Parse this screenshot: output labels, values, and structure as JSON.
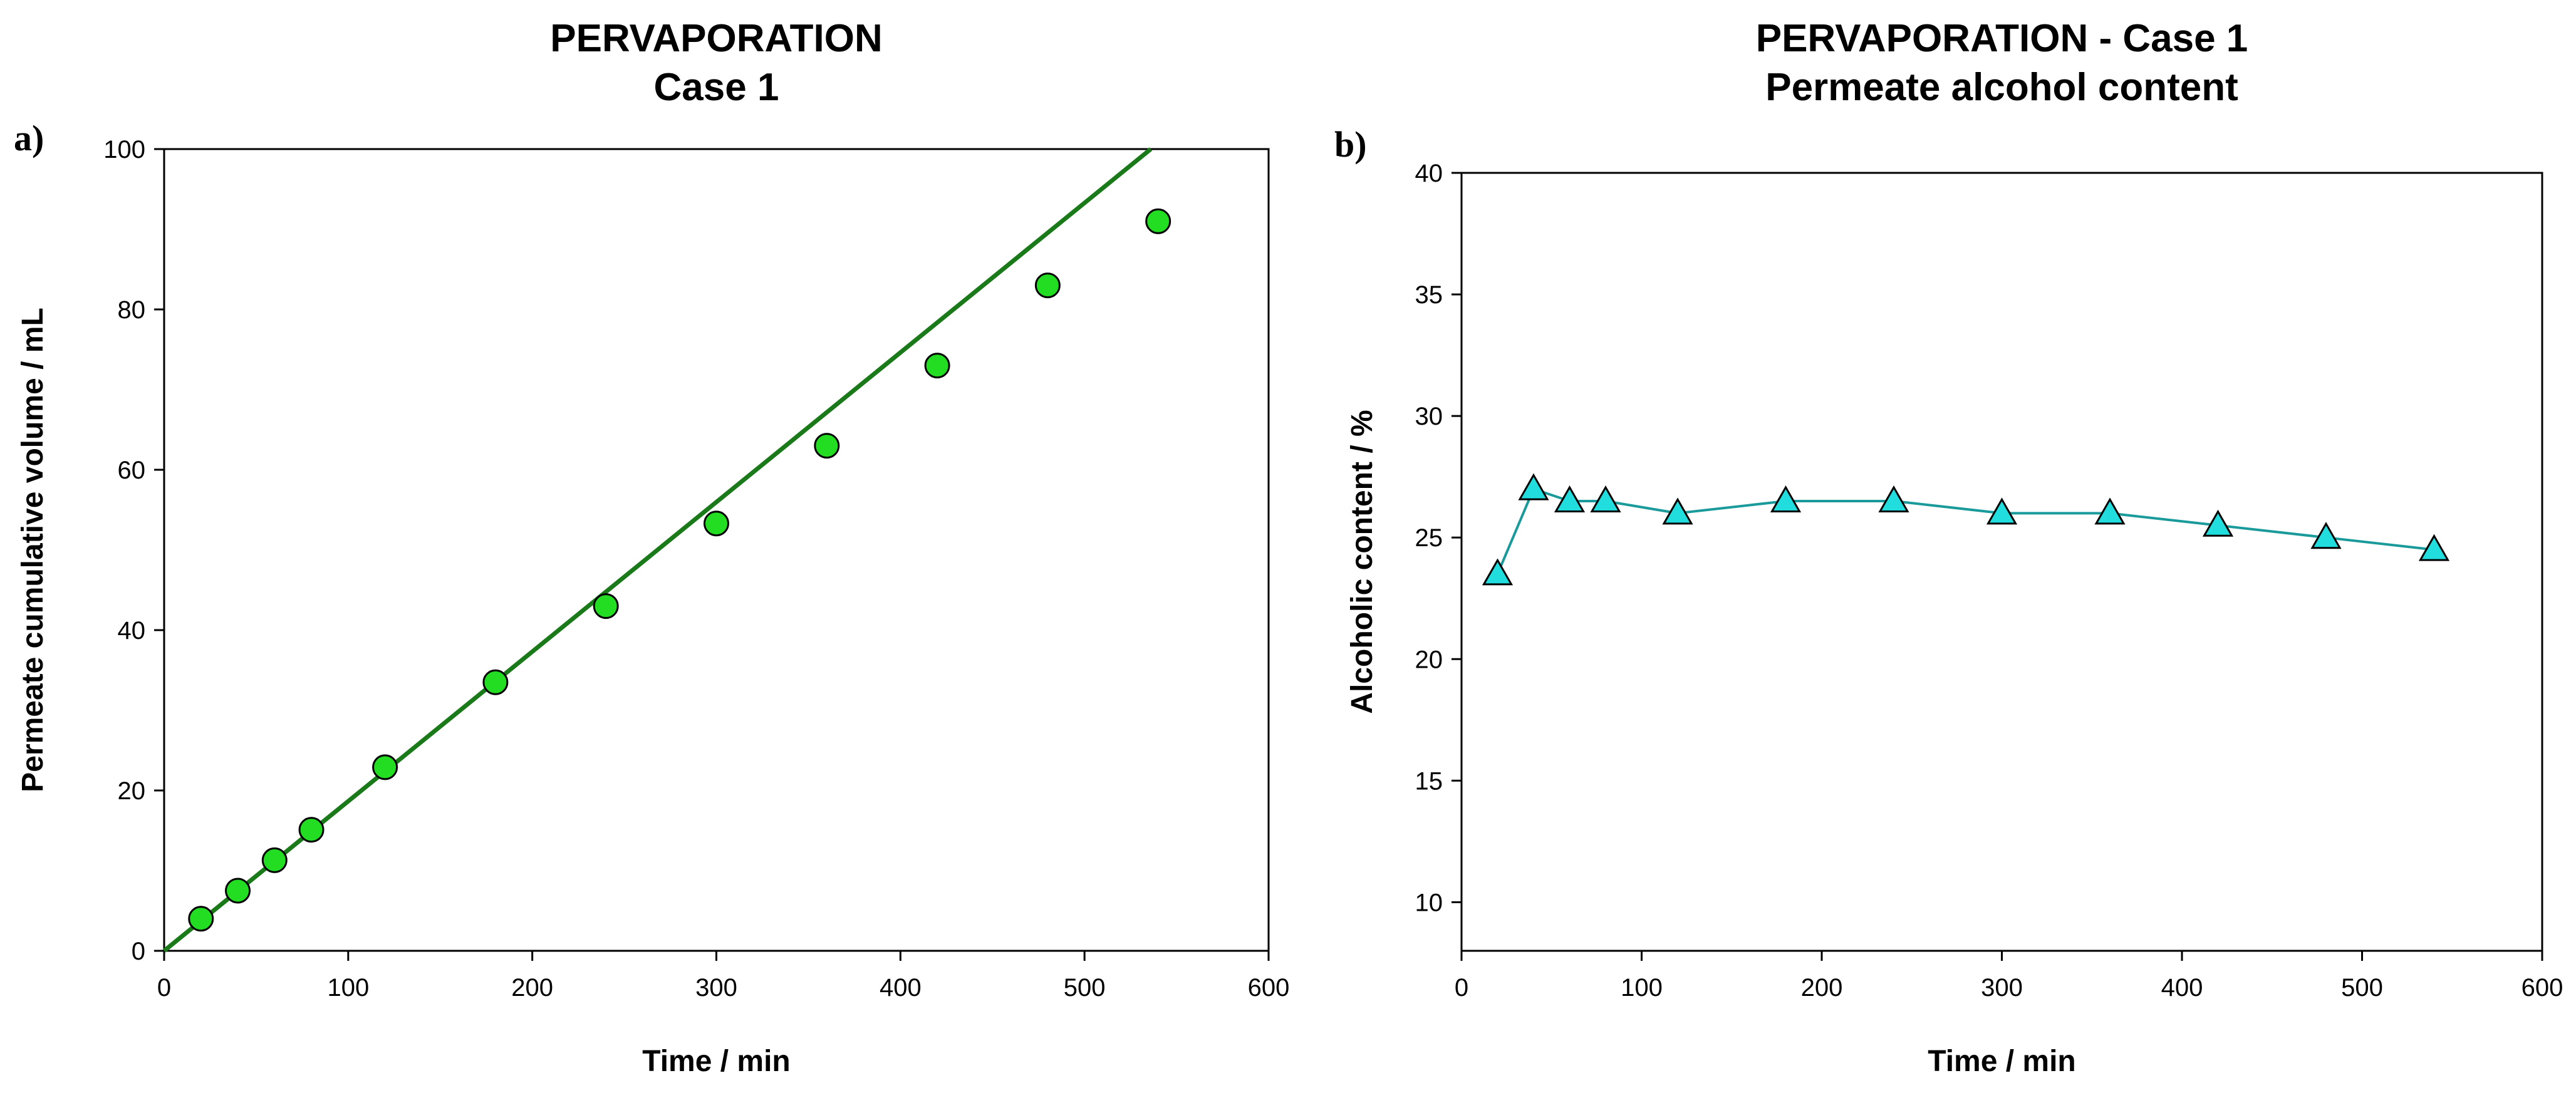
{
  "chart_data": [
    {
      "panel": "a)",
      "type": "scatter",
      "title": [
        "PERVAPORATION",
        "Case 1"
      ],
      "xlabel": "Time / min",
      "ylabel": "Permeate cumulative volume / mL",
      "xlim": [
        0,
        600
      ],
      "ylim": [
        0,
        100
      ],
      "xticks": [
        0,
        100,
        200,
        300,
        400,
        500,
        600
      ],
      "yticks": [
        0,
        20,
        40,
        60,
        80,
        100
      ],
      "series": [
        {
          "name": "Permeate cumulative volume",
          "marker": "circle",
          "color": "#22dd22",
          "x": [
            20,
            40,
            60,
            80,
            120,
            180,
            240,
            300,
            360,
            420,
            480,
            540
          ],
          "y": [
            4,
            7.5,
            11.3,
            15.1,
            22.9,
            33.5,
            43,
            53.3,
            63,
            73,
            83,
            91
          ]
        }
      ],
      "fit_line": {
        "color": "#1a7a1a",
        "x": [
          0,
          536
        ],
        "y": [
          0,
          100
        ]
      }
    },
    {
      "panel": "b)",
      "type": "line",
      "title": [
        "PERVAPORATION - Case 1",
        "Permeate alcohol content"
      ],
      "xlabel": "Time / min",
      "ylabel": "Alcoholic content / %",
      "xlim": [
        0,
        600
      ],
      "ylim": [
        8,
        40
      ],
      "xticks": [
        0,
        100,
        200,
        300,
        400,
        500,
        600
      ],
      "yticks": [
        10,
        15,
        20,
        25,
        30,
        35,
        40
      ],
      "series": [
        {
          "name": "Alcoholic content",
          "marker": "triangle",
          "color": "#22dddd",
          "line_color": "#1a9a9a",
          "x": [
            20,
            40,
            60,
            80,
            120,
            180,
            240,
            300,
            360,
            420,
            480,
            540
          ],
          "y": [
            23.5,
            27,
            26.5,
            26.5,
            26,
            26.5,
            26.5,
            26,
            26,
            25.5,
            25,
            24.5
          ]
        }
      ]
    }
  ]
}
